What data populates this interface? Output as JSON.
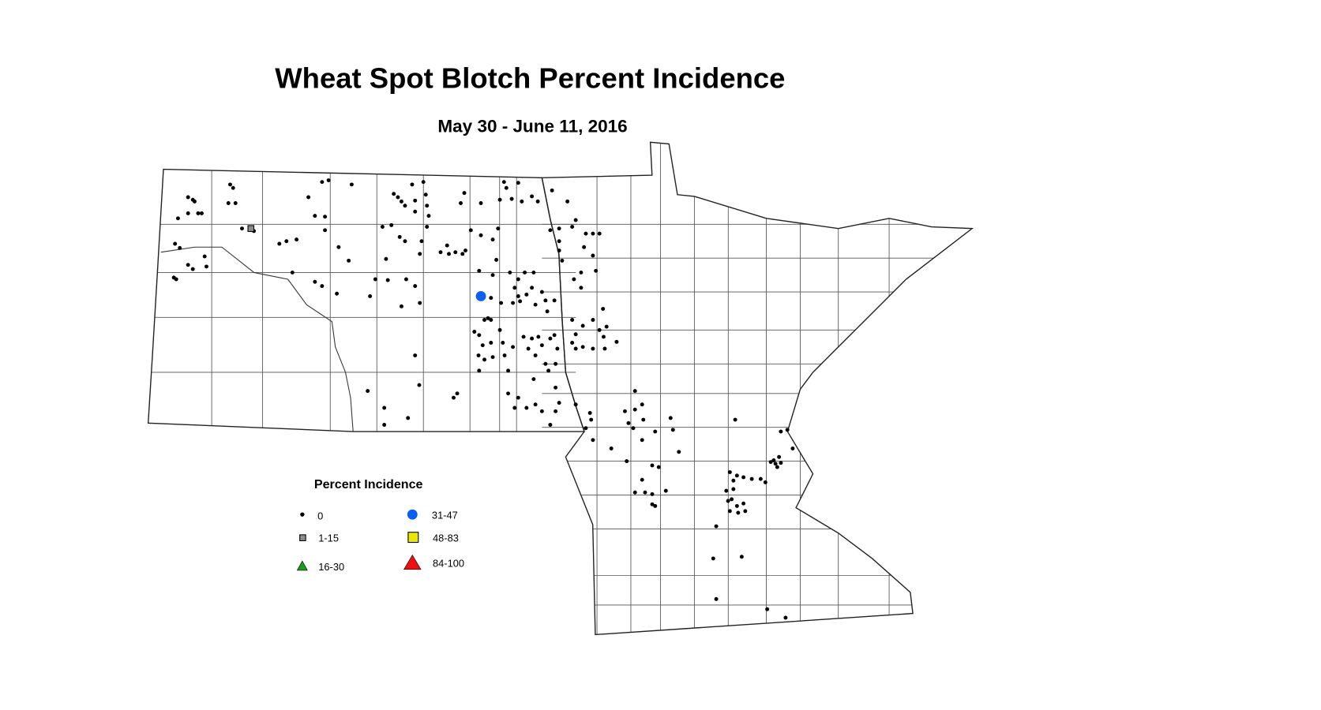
{
  "chart_data": {
    "type": "map",
    "title": "Wheat Spot Blotch Percent Incidence",
    "subtitle": "May 30 - June 11, 2016",
    "region": [
      "North Dakota",
      "Minnesota"
    ],
    "legend": {
      "title": "Percent Incidence",
      "placement": "bottom-left",
      "classes": [
        {
          "label": "0",
          "symbol": "dot",
          "color": "#000000"
        },
        {
          "label": "1-15",
          "symbol": "square",
          "color": "#8c8c8c"
        },
        {
          "label": "16-30",
          "symbol": "triangle",
          "color": "#1a9e1a"
        },
        {
          "label": "31-47",
          "symbol": "circle",
          "color": "#0a5ff0"
        },
        {
          "label": "48-83",
          "symbol": "square",
          "color": "#e8e800"
        },
        {
          "label": "84-100",
          "symbol": "triangle",
          "color": "#ee1111"
        }
      ]
    },
    "observations": {
      "class_1_15": [
        [
          -102.41,
          48.35
        ]
      ],
      "class_31_47": [
        [
          -98.53,
          47.55
        ]
      ],
      "class_0": [
        [
          -103.47,
          48.72
        ],
        [
          -103.39,
          48.69
        ],
        [
          -103.36,
          48.67
        ],
        [
          -103.64,
          48.47
        ],
        [
          -103.47,
          48.53
        ],
        [
          -103.3,
          48.53
        ],
        [
          -103.24,
          48.53
        ],
        [
          -103.69,
          48.17
        ],
        [
          -103.61,
          48.12
        ],
        [
          -103.47,
          47.92
        ],
        [
          -103.39,
          47.87
        ],
        [
          -103.19,
          48.02
        ],
        [
          -103.16,
          47.9
        ],
        [
          -103.71,
          47.77
        ],
        [
          -103.67,
          47.75
        ],
        [
          -102.76,
          48.87
        ],
        [
          -102.71,
          48.83
        ],
        [
          -102.79,
          48.65
        ],
        [
          -102.67,
          48.65
        ],
        [
          -102.56,
          48.35
        ],
        [
          -102.36,
          48.32
        ],
        [
          -101.93,
          48.17
        ],
        [
          -101.81,
          48.2
        ],
        [
          -101.64,
          48.22
        ],
        [
          -101.71,
          47.83
        ],
        [
          -101.44,
          48.72
        ],
        [
          -101.33,
          48.5
        ],
        [
          -101.16,
          48.49
        ],
        [
          -101.16,
          48.33
        ],
        [
          -101.21,
          48.9
        ],
        [
          -101.1,
          48.92
        ],
        [
          -100.71,
          48.87
        ],
        [
          -100.93,
          48.13
        ],
        [
          -100.76,
          47.97
        ],
        [
          -101.33,
          47.72
        ],
        [
          -101.21,
          47.67
        ],
        [
          -100.96,
          47.58
        ],
        [
          -100.4,
          47.55
        ],
        [
          -100.31,
          47.75
        ],
        [
          -100.1,
          47.74
        ],
        [
          -100.13,
          47.99
        ],
        [
          -100.19,
          48.37
        ],
        [
          -100.04,
          48.39
        ],
        [
          -100.0,
          48.76
        ],
        [
          -99.93,
          48.72
        ],
        [
          -99.87,
          48.67
        ],
        [
          -99.81,
          48.62
        ],
        [
          -99.69,
          48.87
        ],
        [
          -99.64,
          48.68
        ],
        [
          -99.64,
          48.55
        ],
        [
          -99.5,
          48.9
        ],
        [
          -99.46,
          48.75
        ],
        [
          -99.44,
          48.62
        ],
        [
          -99.41,
          48.5
        ],
        [
          -99.44,
          48.37
        ],
        [
          -99.9,
          48.25
        ],
        [
          -99.81,
          48.2
        ],
        [
          -99.53,
          48.2
        ],
        [
          -99.56,
          48.05
        ],
        [
          -99.79,
          47.75
        ],
        [
          -99.64,
          47.67
        ],
        [
          -99.56,
          47.47
        ],
        [
          -99.87,
          47.43
        ],
        [
          -99.21,
          48.07
        ],
        [
          -99.1,
          48.15
        ],
        [
          -99.07,
          48.05
        ],
        [
          -98.96,
          48.07
        ],
        [
          -98.84,
          48.05
        ],
        [
          -98.79,
          48.09
        ],
        [
          -98.87,
          48.65
        ],
        [
          -98.81,
          48.77
        ],
        [
          -98.53,
          48.65
        ],
        [
          -98.7,
          48.33
        ],
        [
          -98.53,
          48.27
        ],
        [
          -98.24,
          48.35
        ],
        [
          -98.33,
          48.22
        ],
        [
          -98.14,
          48.9
        ],
        [
          -98.1,
          48.83
        ],
        [
          -98.01,
          48.7
        ],
        [
          -97.9,
          48.89
        ],
        [
          -97.84,
          48.67
        ],
        [
          -97.67,
          48.73
        ],
        [
          -97.57,
          48.67
        ],
        [
          -98.21,
          48.69
        ],
        [
          -97.33,
          48.8
        ],
        [
          -97.07,
          48.67
        ],
        [
          -98.56,
          47.85
        ],
        [
          -98.27,
          47.98
        ],
        [
          -98.33,
          47.8
        ],
        [
          -98.04,
          47.83
        ],
        [
          -97.9,
          47.75
        ],
        [
          -97.79,
          47.83
        ],
        [
          -97.64,
          47.83
        ],
        [
          -97.96,
          47.65
        ],
        [
          -98.36,
          47.53
        ],
        [
          -98.19,
          47.47
        ],
        [
          -97.99,
          47.47
        ],
        [
          -97.9,
          47.55
        ],
        [
          -97.76,
          47.57
        ],
        [
          -97.67,
          47.65
        ],
        [
          -97.5,
          47.6
        ],
        [
          -97.61,
          47.45
        ],
        [
          -97.44,
          47.5
        ],
        [
          -97.41,
          47.37
        ],
        [
          -97.29,
          47.5
        ],
        [
          -97.87,
          47.49
        ],
        [
          -98.47,
          47.27
        ],
        [
          -98.41,
          47.29
        ],
        [
          -98.36,
          47.27
        ],
        [
          -98.64,
          47.13
        ],
        [
          -98.56,
          47.09
        ],
        [
          -98.5,
          46.97
        ],
        [
          -98.57,
          46.85
        ],
        [
          -98.47,
          46.8
        ],
        [
          -98.56,
          46.67
        ],
        [
          -98.36,
          47.0
        ],
        [
          -98.33,
          46.83
        ],
        [
          -98.21,
          47.15
        ],
        [
          -98.16,
          47.0
        ],
        [
          -98.13,
          46.85
        ],
        [
          -98.07,
          46.67
        ],
        [
          -97.99,
          46.95
        ],
        [
          -97.81,
          47.07
        ],
        [
          -97.73,
          46.93
        ],
        [
          -97.67,
          47.05
        ],
        [
          -97.56,
          47.07
        ],
        [
          -97.61,
          46.85
        ],
        [
          -97.5,
          46.97
        ],
        [
          -97.44,
          46.75
        ],
        [
          -97.36,
          47.05
        ],
        [
          -97.29,
          47.09
        ],
        [
          -97.27,
          46.75
        ],
        [
          -97.24,
          46.93
        ],
        [
          -97.39,
          46.67
        ],
        [
          -97.36,
          48.33
        ],
        [
          -97.21,
          48.35
        ],
        [
          -96.99,
          48.37
        ],
        [
          -96.93,
          48.45
        ],
        [
          -96.76,
          48.29
        ],
        [
          -96.64,
          48.29
        ],
        [
          -96.53,
          48.29
        ],
        [
          -96.79,
          48.13
        ],
        [
          -96.64,
          48.03
        ],
        [
          -96.59,
          47.85
        ],
        [
          -97.21,
          48.2
        ],
        [
          -97.21,
          48.09
        ],
        [
          -97.16,
          47.97
        ],
        [
          -96.96,
          47.75
        ],
        [
          -96.84,
          47.83
        ],
        [
          -96.84,
          47.65
        ],
        [
          -96.47,
          47.4
        ],
        [
          -96.99,
          47.27
        ],
        [
          -96.81,
          47.2
        ],
        [
          -96.64,
          47.27
        ],
        [
          -96.53,
          47.15
        ],
        [
          -96.41,
          47.19
        ],
        [
          -96.93,
          47.1
        ],
        [
          -96.99,
          47.0
        ],
        [
          -96.93,
          46.93
        ],
        [
          -96.81,
          46.95
        ],
        [
          -96.64,
          46.93
        ],
        [
          -96.44,
          46.93
        ],
        [
          -96.46,
          47.07
        ],
        [
          -96.24,
          47.01
        ],
        [
          -99.64,
          46.85
        ],
        [
          -100.44,
          46.43
        ],
        [
          -99.57,
          46.5
        ],
        [
          -98.93,
          46.4
        ],
        [
          -98.99,
          46.35
        ],
        [
          -100.16,
          46.23
        ],
        [
          -100.16,
          46.03
        ],
        [
          -99.76,
          46.11
        ],
        [
          -98.07,
          46.4
        ],
        [
          -97.9,
          46.35
        ],
        [
          -97.64,
          46.57
        ],
        [
          -97.61,
          46.27
        ],
        [
          -97.96,
          46.23
        ],
        [
          -97.76,
          46.23
        ],
        [
          -97.5,
          46.19
        ],
        [
          -97.27,
          46.47
        ],
        [
          -97.21,
          46.29
        ],
        [
          -97.27,
          46.19
        ],
        [
          -97.36,
          46.03
        ],
        [
          -96.93,
          46.27
        ],
        [
          -96.69,
          46.17
        ],
        [
          -96.67,
          46.09
        ],
        [
          -96.76,
          45.99
        ],
        [
          -96.64,
          45.85
        ],
        [
          -95.93,
          46.43
        ],
        [
          -95.81,
          46.27
        ],
        [
          -96.1,
          46.19
        ],
        [
          -95.93,
          46.21
        ],
        [
          -96.04,
          46.05
        ],
        [
          -95.96,
          45.99
        ],
        [
          -95.79,
          46.09
        ],
        [
          -95.59,
          45.95
        ],
        [
          -95.33,
          46.11
        ],
        [
          -95.29,
          45.97
        ],
        [
          -95.81,
          45.85
        ],
        [
          -96.33,
          45.75
        ],
        [
          -96.07,
          45.6
        ],
        [
          -95.64,
          45.55
        ],
        [
          -95.53,
          45.53
        ],
        [
          -95.19,
          45.71
        ],
        [
          -95.81,
          45.38
        ],
        [
          -95.76,
          45.23
        ],
        [
          -95.93,
          45.23
        ],
        [
          -95.64,
          45.21
        ],
        [
          -95.41,
          45.25
        ],
        [
          -95.64,
          45.09
        ],
        [
          -95.59,
          45.07
        ],
        [
          -94.24,
          46.09
        ],
        [
          -93.47,
          45.95
        ],
        [
          -93.36,
          45.97
        ],
        [
          -93.27,
          45.75
        ],
        [
          -93.59,
          45.61
        ],
        [
          -93.56,
          45.57
        ],
        [
          -93.53,
          45.53
        ],
        [
          -93.5,
          45.65
        ],
        [
          -93.47,
          45.58
        ],
        [
          -93.64,
          45.59
        ],
        [
          -94.33,
          45.47
        ],
        [
          -94.21,
          45.43
        ],
        [
          -94.1,
          45.41
        ],
        [
          -93.96,
          45.39
        ],
        [
          -93.81,
          45.39
        ],
        [
          -93.73,
          45.35
        ],
        [
          -94.27,
          45.37
        ],
        [
          -94.39,
          45.25
        ],
        [
          -94.27,
          45.27
        ],
        [
          -94.3,
          45.15
        ],
        [
          -94.36,
          45.13
        ],
        [
          -94.21,
          45.07
        ],
        [
          -94.1,
          45.1
        ],
        [
          -94.19,
          44.99
        ],
        [
          -94.07,
          45.01
        ],
        [
          -94.33,
          45.01
        ],
        [
          -94.56,
          44.83
        ],
        [
          -94.61,
          44.45
        ],
        [
          -94.13,
          44.47
        ],
        [
          -94.56,
          43.97
        ],
        [
          -93.7,
          43.85
        ],
        [
          -93.39,
          43.75
        ]
      ]
    }
  }
}
